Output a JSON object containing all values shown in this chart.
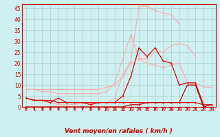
{
  "title": "",
  "xlabel": "Vent moyen/en rafales ( km/h )",
  "background_color": "#cff0f0",
  "grid_color": "#b0d0d0",
  "xlim": [
    -0.5,
    23.5
  ],
  "ylim": [
    0,
    47
  ],
  "yticks": [
    0,
    5,
    10,
    15,
    20,
    25,
    30,
    35,
    40,
    45
  ],
  "xticks": [
    0,
    1,
    2,
    3,
    4,
    5,
    6,
    7,
    8,
    9,
    10,
    11,
    12,
    13,
    14,
    15,
    16,
    17,
    18,
    19,
    20,
    21,
    22,
    23
  ],
  "series": [
    {
      "x": [
        0,
        1,
        2,
        3,
        4,
        5,
        6,
        7,
        8,
        9,
        10,
        11,
        12,
        13,
        14,
        15,
        16,
        17,
        18,
        19
      ],
      "y": [
        4,
        3,
        3,
        2,
        1,
        1,
        1,
        2,
        1,
        2,
        2,
        4,
        15,
        21,
        46,
        46,
        44,
        43,
        42,
        38
      ],
      "color": "#ffaaaa",
      "lw": 0.8,
      "marker": "+"
    },
    {
      "x": [
        0,
        1,
        2,
        3,
        4,
        5,
        6,
        7,
        8,
        9,
        10,
        11,
        12,
        13,
        14,
        15,
        16,
        17,
        18,
        19,
        20,
        21
      ],
      "y": [
        8,
        8,
        7,
        7,
        6,
        6,
        6,
        6,
        6,
        6,
        7,
        11,
        22,
        33,
        22,
        22,
        25,
        25,
        28,
        29,
        28,
        23
      ],
      "color": "#ffaaaa",
      "lw": 0.8,
      "marker": "+"
    },
    {
      "x": [
        0,
        1,
        2,
        3,
        4,
        5,
        6,
        7,
        8,
        9,
        10,
        11,
        12,
        13,
        14,
        15,
        16,
        17,
        18,
        19,
        20,
        21,
        22,
        23
      ],
      "y": [
        8,
        8,
        8,
        8,
        8,
        8,
        8,
        8,
        8,
        8,
        9,
        10,
        14,
        20,
        22,
        20,
        19,
        18,
        19,
        20,
        11,
        11,
        9,
        9
      ],
      "color": "#ffaaaa",
      "lw": 0.8,
      "marker": "+"
    },
    {
      "x": [
        0,
        1,
        2,
        3,
        4,
        5,
        6,
        7,
        8,
        9,
        10,
        11,
        12,
        13,
        14,
        15,
        16,
        17,
        18,
        19,
        20,
        21,
        22
      ],
      "y": [
        4,
        3,
        3,
        2,
        4,
        2,
        2,
        2,
        1,
        2,
        2,
        2,
        5,
        14,
        27,
        23,
        27,
        21,
        20,
        10,
        11,
        11,
        1
      ],
      "color": "#dd0000",
      "lw": 0.9,
      "marker": "+"
    },
    {
      "x": [
        0,
        1,
        2,
        3,
        4,
        5,
        6,
        7,
        8,
        9,
        10,
        11,
        12,
        13,
        14,
        15,
        16,
        17,
        18,
        19,
        20,
        21,
        22,
        23
      ],
      "y": [
        4,
        3,
        3,
        3,
        2,
        2,
        2,
        2,
        2,
        2,
        2,
        2,
        2,
        2,
        2,
        2,
        2,
        2,
        2,
        2,
        2,
        2,
        1,
        1
      ],
      "color": "#dd0000",
      "lw": 0.9,
      "marker": "+"
    },
    {
      "x": [
        0,
        1,
        2,
        3,
        4,
        5,
        6,
        7,
        8,
        9,
        10,
        11,
        12,
        13,
        14,
        15,
        16,
        17,
        18,
        19,
        20,
        21,
        22,
        23
      ],
      "y": [
        0,
        0,
        0,
        0,
        0,
        0,
        0,
        0,
        0,
        0,
        0,
        0,
        0,
        1,
        1,
        2,
        2,
        2,
        2,
        2,
        10,
        10,
        0,
        1
      ],
      "color": "#bb0000",
      "lw": 0.9,
      "marker": "+"
    }
  ]
}
